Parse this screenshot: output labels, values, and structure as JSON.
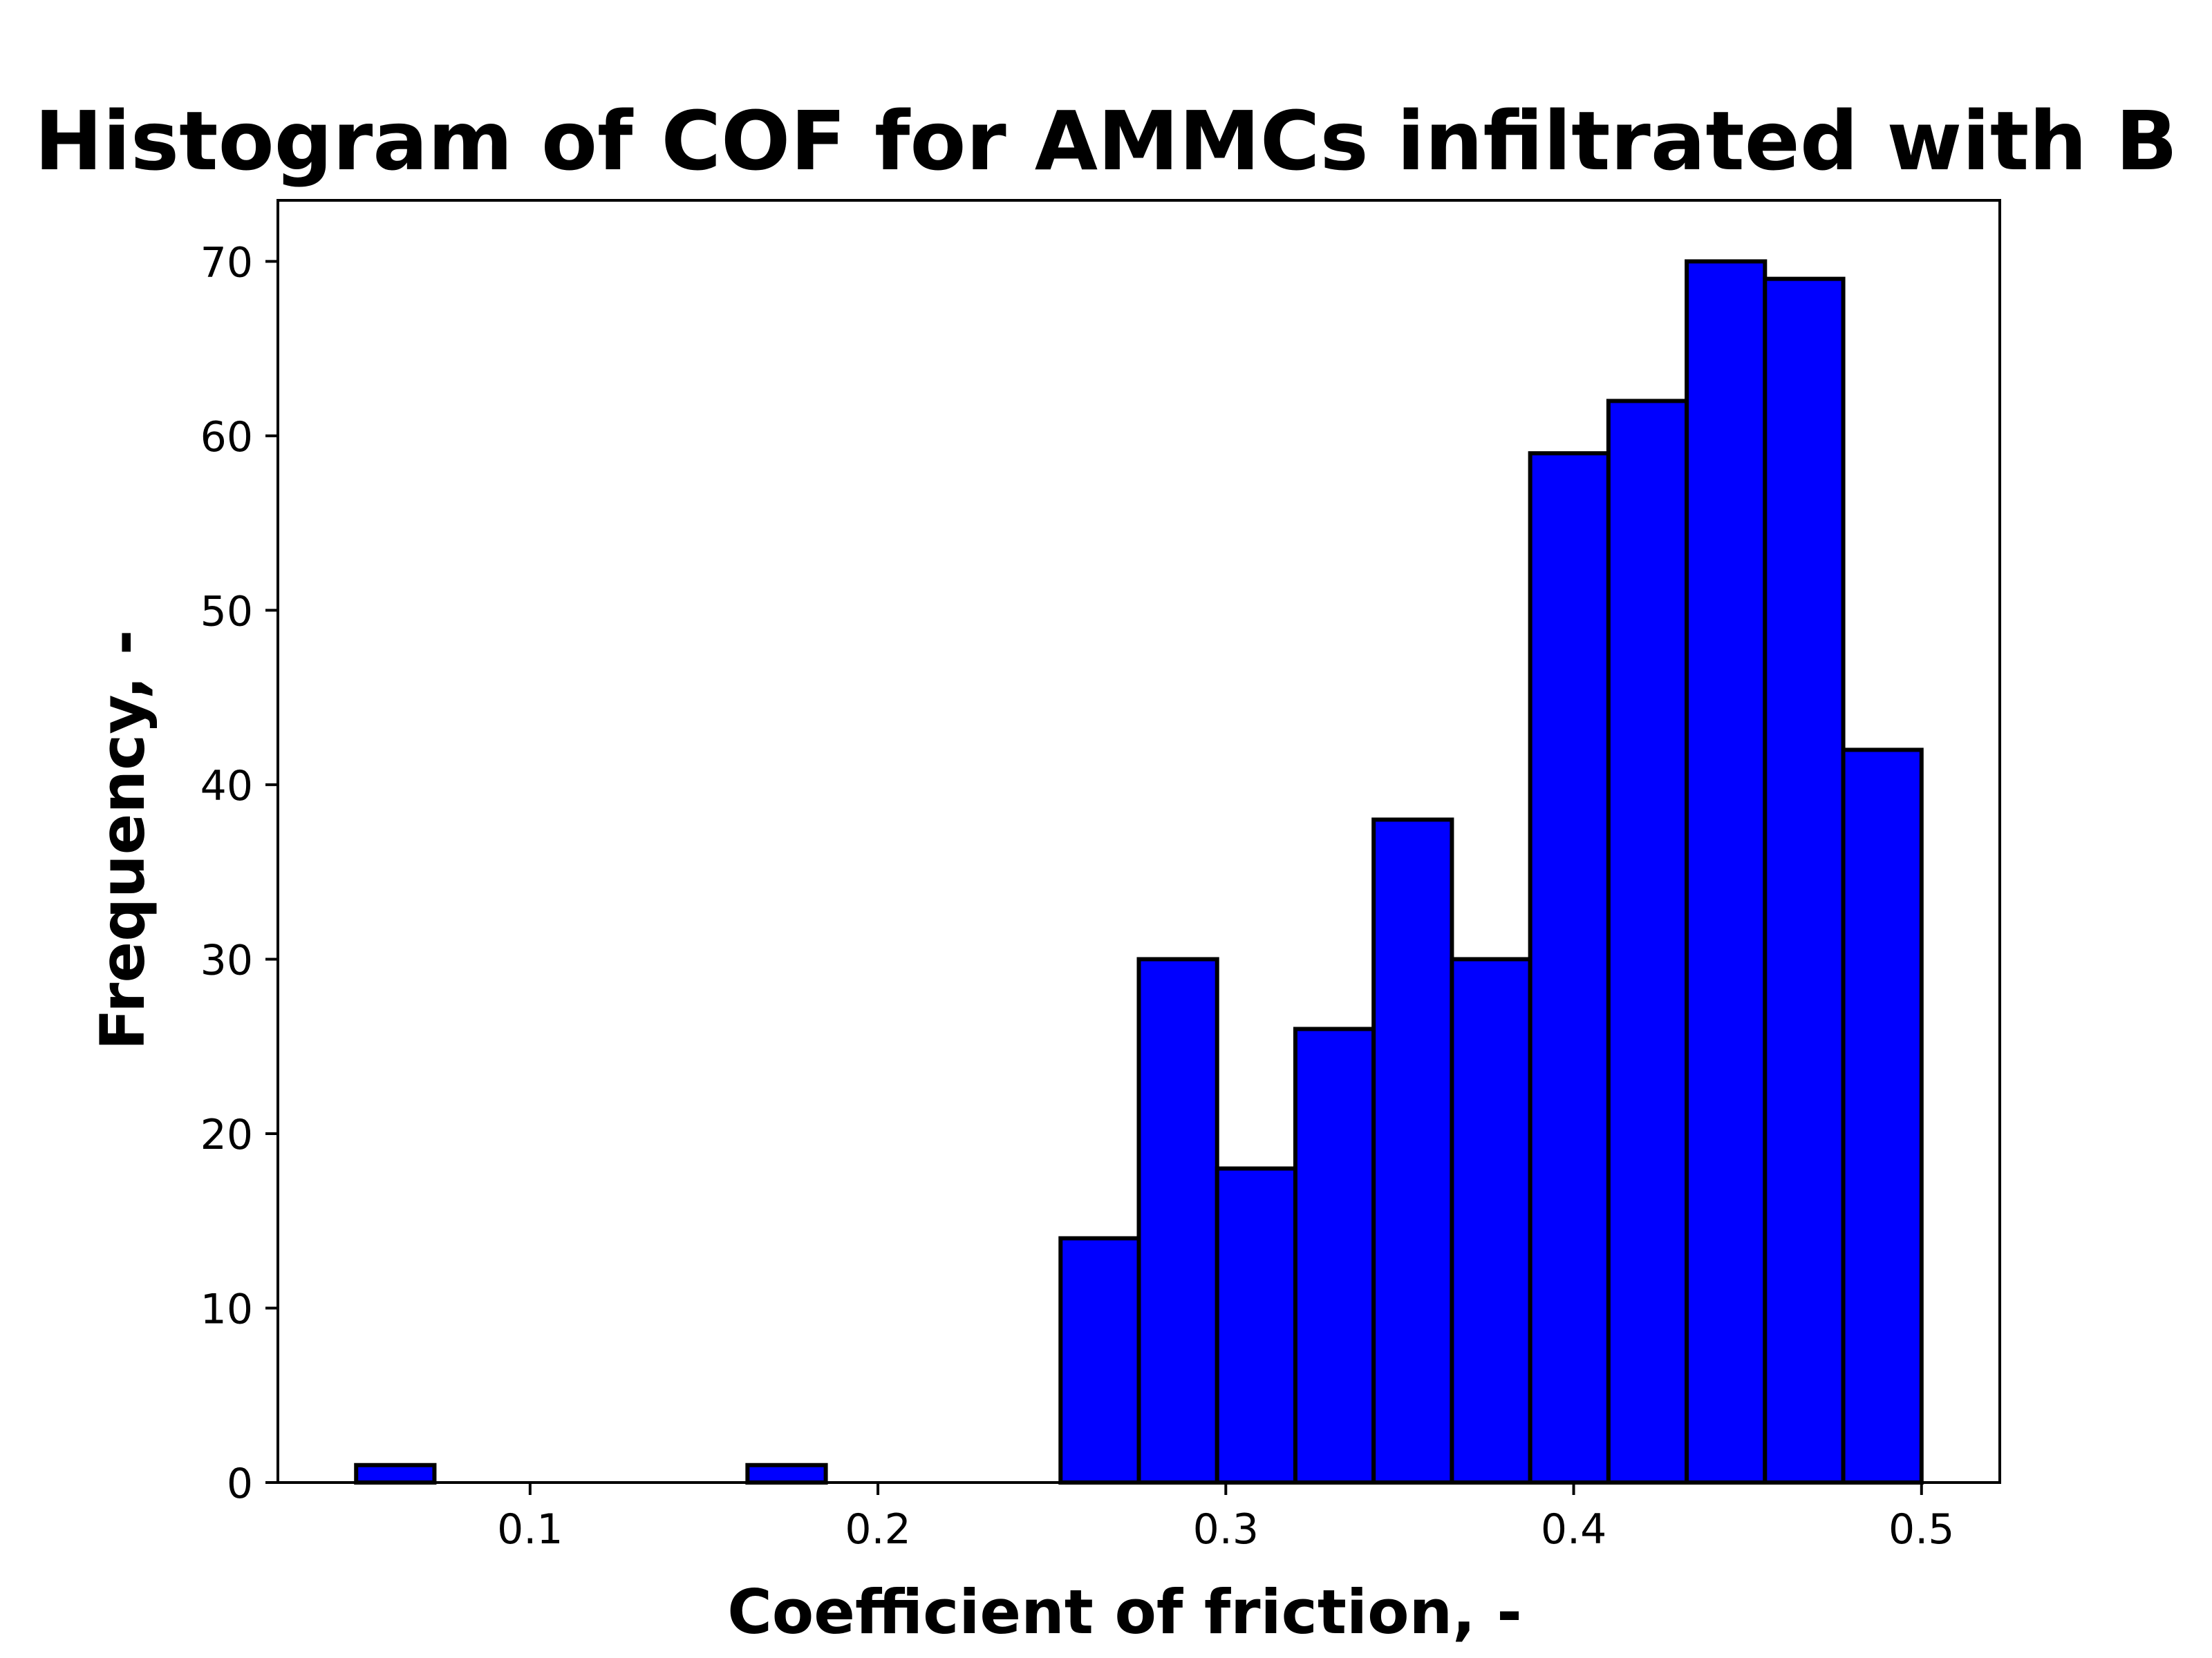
{
  "chart_data": {
    "type": "bar",
    "title": "Histogram of COF for AMMCs infiltrated with B",
    "xlabel": "Coefficient of friction, -",
    "ylabel": "Frequency, -",
    "bin_edges": [
      0.05,
      0.0725,
      0.095,
      0.1175,
      0.14,
      0.1625,
      0.185,
      0.2075,
      0.23,
      0.2525,
      0.275,
      0.2975,
      0.32,
      0.3425,
      0.365,
      0.3875,
      0.41,
      0.4325,
      0.455,
      0.4775,
      0.5
    ],
    "values": [
      1,
      0,
      0,
      0,
      0,
      1,
      0,
      0,
      0,
      14,
      30,
      18,
      26,
      38,
      30,
      59,
      62,
      70,
      69,
      42
    ],
    "xlim": [
      0.0275,
      0.5225
    ],
    "ylim": [
      0,
      73.5
    ],
    "xticks": [
      "0.1",
      "0.2",
      "0.3",
      "0.4",
      "0.5"
    ],
    "xtick_values": [
      0.1,
      0.2,
      0.3,
      0.4,
      0.5
    ],
    "yticks": [
      "0",
      "10",
      "20",
      "30",
      "40",
      "50",
      "60",
      "70"
    ],
    "ytick_values": [
      0,
      10,
      20,
      30,
      40,
      50,
      60,
      70
    ],
    "bar_color": "#0000ff",
    "edge_color": "#000000",
    "grid": false
  }
}
